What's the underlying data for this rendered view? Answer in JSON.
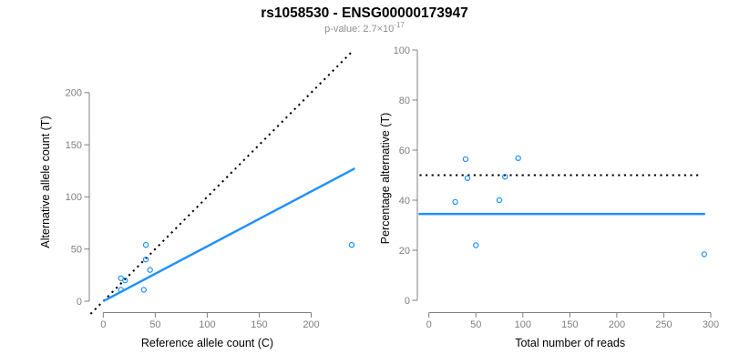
{
  "header": {
    "title": "rs1058530 - ENSG00000173947",
    "subtitle": {
      "label": "p-value: 2.7×10",
      "exponent": "-17"
    }
  },
  "colors": {
    "points": "#1e90ff",
    "fit_line": "#1e90ff",
    "reference_line": "#000000",
    "axis": "#7f7f7f",
    "tick_labels": "#7f7f7f",
    "axis_titles": "#000000",
    "title": "#000000",
    "subtitle": "#8f8f8f",
    "background": "#ffffff"
  },
  "chart_data": [
    {
      "type": "scatter",
      "panel": "left",
      "title": "",
      "xlabel": "Reference allele count (C)",
      "ylabel": "Alternative allele count (T)",
      "xticks": [
        0,
        50,
        100,
        150,
        200
      ],
      "yticks": [
        0,
        50,
        100,
        150,
        200
      ],
      "xlim": [
        0,
        242
      ],
      "ylim": [
        0,
        239
      ],
      "grid": false,
      "legend": null,
      "points": [
        [
          17,
          22
        ],
        [
          21,
          20
        ],
        [
          17,
          11
        ],
        [
          39,
          11
        ],
        [
          45,
          30
        ],
        [
          41,
          40
        ],
        [
          41,
          54
        ],
        [
          239,
          54
        ]
      ],
      "lines": [
        {
          "name": "identity-reference-line",
          "kind": "abline",
          "slope": 1,
          "intercept": 0,
          "style": "dotted",
          "color": "#000000"
        },
        {
          "name": "allelic-fit-line",
          "kind": "abline",
          "slope": 0.526,
          "intercept": 0,
          "style": "solid",
          "color": "#1e90ff"
        }
      ]
    },
    {
      "type": "scatter",
      "panel": "right",
      "title": "",
      "xlabel": "Total number of reads",
      "ylabel": "Percentage alternative (T)",
      "xticks": [
        0,
        50,
        100,
        150,
        200,
        250,
        300
      ],
      "yticks": [
        0,
        20,
        40,
        60,
        80,
        100
      ],
      "xlim": [
        0,
        300
      ],
      "ylim": [
        0,
        100
      ],
      "grid": false,
      "legend": null,
      "points": [
        [
          39,
          56.4
        ],
        [
          41,
          48.8
        ],
        [
          28,
          39.3
        ],
        [
          50,
          22
        ],
        [
          75,
          40
        ],
        [
          81,
          49.4
        ],
        [
          95,
          56.8
        ],
        [
          293,
          18.4
        ]
      ],
      "lines": [
        {
          "name": "fifty-percent-line",
          "kind": "hline",
          "y": 50,
          "style": "dotted",
          "color": "#000000"
        },
        {
          "name": "mean-percentage-line",
          "kind": "hline",
          "y": 34.5,
          "style": "solid",
          "color": "#1e90ff"
        }
      ]
    }
  ]
}
